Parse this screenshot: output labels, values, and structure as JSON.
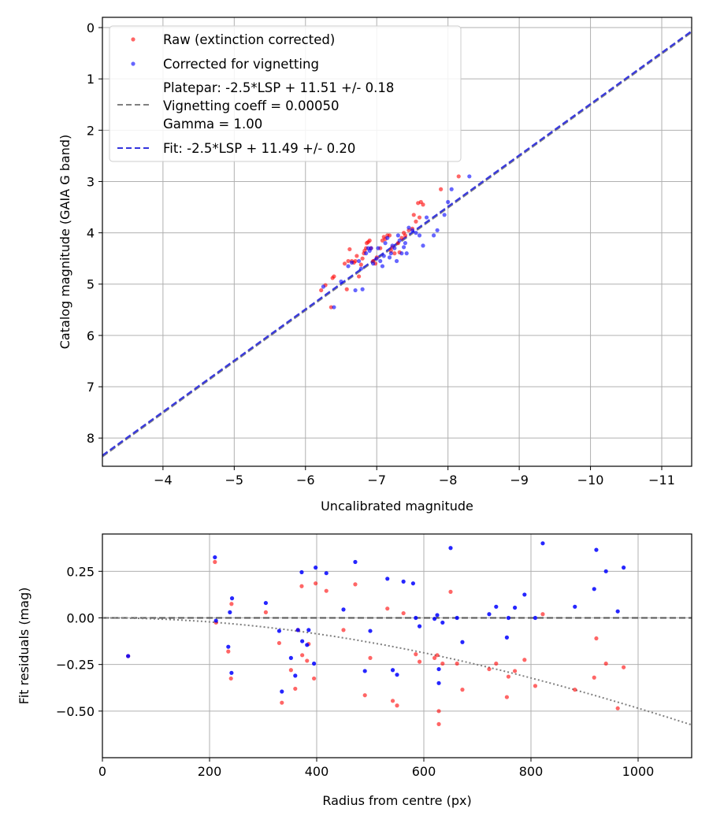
{
  "chart_data": [
    {
      "type": "scatter",
      "name": "calibration",
      "xlabel": "Uncalibrated magnitude",
      "ylabel": "Catalog magnitude (GAIA G band)",
      "xlim": [
        -3.15,
        -11.42
      ],
      "ylim": [
        8.55,
        -0.2
      ],
      "xticks": [
        -4,
        -5,
        -6,
        -7,
        -8,
        -9,
        -10,
        -11
      ],
      "xtick_labels": [
        "−4",
        "−5",
        "−6",
        "−7",
        "−8",
        "−9",
        "−10",
        "−11"
      ],
      "yticks": [
        0,
        1,
        2,
        3,
        4,
        5,
        6,
        7,
        8
      ],
      "ytick_labels": [
        "0",
        "1",
        "2",
        "3",
        "4",
        "5",
        "6",
        "7",
        "8"
      ],
      "grid": true,
      "legend_position": "top-left",
      "legend": [
        {
          "label": "Raw (extinction corrected)",
          "marker": "dot",
          "color": "#ff0000"
        },
        {
          "label": "Corrected for vignetting",
          "marker": "dot",
          "color": "#0000ff"
        },
        {
          "label": "Platepar: -2.5*LSP + 11.51 +/- 0.18",
          "label2": "Vignetting coeff = 0.00050",
          "label3": "Gamma = 1.00",
          "marker": "dashed",
          "color": "#808080"
        },
        {
          "label": "Fit: -2.5*LSP + 11.49 +/- 0.20",
          "marker": "dashed",
          "color": "#3333dd"
        }
      ],
      "lines": [
        {
          "name": "platepar",
          "slope": -2.5,
          "intercept": 11.51,
          "color": "#808080"
        },
        {
          "name": "fit",
          "slope": -2.5,
          "intercept": 11.49,
          "color": "#3333dd"
        }
      ],
      "series": [
        {
          "name": "Raw (extinction corrected)",
          "color": "#ff0000",
          "x": [
            -6.22,
            -6.28,
            -6.36,
            -6.38,
            -6.55,
            -6.58,
            -6.62,
            -6.65,
            -6.68,
            -6.7,
            -6.72,
            -6.75,
            -6.78,
            -6.8,
            -6.82,
            -6.83,
            -6.85,
            -6.86,
            -6.88,
            -6.9,
            -6.92,
            -6.95,
            -7.0,
            -7.05,
            -7.08,
            -7.1,
            -7.12,
            -7.15,
            -7.2,
            -7.22,
            -7.25,
            -7.3,
            -7.35,
            -7.38,
            -7.4,
            -7.45,
            -7.5,
            -7.52,
            -7.55,
            -7.6,
            -7.62,
            -7.65,
            -7.9,
            -8.15,
            -6.4,
            -6.6,
            -6.98,
            -7.18,
            -7.32,
            -7.58
          ],
          "y": [
            5.12,
            5.02,
            5.45,
            4.88,
            4.6,
            5.1,
            4.32,
            4.55,
            4.58,
            4.55,
            4.45,
            4.85,
            4.62,
            4.5,
            4.4,
            4.35,
            4.3,
            4.2,
            4.18,
            4.15,
            4.3,
            4.55,
            4.48,
            4.3,
            4.15,
            4.08,
            4.12,
            4.05,
            4.35,
            4.28,
            4.4,
            4.2,
            4.1,
            4.0,
            4.05,
            3.95,
            3.92,
            3.65,
            3.78,
            3.7,
            3.4,
            3.45,
            3.15,
            2.9,
            4.85,
            4.55,
            4.6,
            4.05,
            4.38,
            3.42
          ]
        },
        {
          "name": "Corrected for vignetting",
          "color": "#0000ff",
          "x": [
            -6.25,
            -6.4,
            -6.5,
            -6.6,
            -6.7,
            -6.75,
            -6.8,
            -6.85,
            -6.88,
            -6.92,
            -6.95,
            -7.0,
            -7.02,
            -7.05,
            -7.1,
            -7.12,
            -7.15,
            -7.2,
            -7.22,
            -7.25,
            -7.28,
            -7.3,
            -7.32,
            -7.35,
            -7.4,
            -7.42,
            -7.45,
            -7.5,
            -7.55,
            -7.6,
            -7.65,
            -7.7,
            -7.8,
            -7.85,
            -7.95,
            -8.0,
            -8.05,
            -8.3,
            -6.65,
            -6.9,
            -7.08,
            -7.38,
            -7.18,
            -6.78
          ],
          "y": [
            5.05,
            5.45,
            4.95,
            4.65,
            5.12,
            4.55,
            5.1,
            4.4,
            4.3,
            4.3,
            4.6,
            4.5,
            4.3,
            4.55,
            4.45,
            4.2,
            4.1,
            4.4,
            4.25,
            4.3,
            4.55,
            4.05,
            4.15,
            4.4,
            4.2,
            4.4,
            3.9,
            3.95,
            4.0,
            4.05,
            4.25,
            3.7,
            4.05,
            3.95,
            3.65,
            3.4,
            3.15,
            2.9,
            4.58,
            4.35,
            4.65,
            4.28,
            4.48,
            4.7
          ]
        }
      ]
    },
    {
      "type": "scatter",
      "name": "residuals",
      "xlabel": "Radius from centre (px)",
      "ylabel": "Fit residuals (mag)",
      "xlim": [
        0,
        1100
      ],
      "ylim": [
        -0.75,
        0.45
      ],
      "xticks": [
        0,
        200,
        400,
        600,
        800,
        1000
      ],
      "xtick_labels": [
        "0",
        "200",
        "400",
        "600",
        "800",
        "1000"
      ],
      "yticks": [
        0.25,
        0.0,
        -0.25,
        -0.5
      ],
      "ytick_labels": [
        "0.25",
        "0.00",
        "−0.25",
        "−0.50"
      ],
      "grid": true,
      "lines": [
        {
          "name": "zero-line",
          "style": "dashed",
          "color": "#555555",
          "y": 0
        },
        {
          "name": "vignetting-curve",
          "style": "dotted",
          "color": "#808080",
          "coeff": 0.0005
        }
      ],
      "series": [
        {
          "name": "Raw (extinction corrected)",
          "color": "#ff0000",
          "x": [
            48,
            210,
            212,
            235,
            240,
            241,
            305,
            330,
            335,
            352,
            360,
            365,
            372,
            373,
            382,
            385,
            395,
            398,
            418,
            450,
            472,
            490,
            500,
            532,
            542,
            550,
            562,
            585,
            592,
            620,
            625,
            628,
            628,
            635,
            650,
            662,
            672,
            722,
            735,
            755,
            758,
            770,
            788,
            808,
            822,
            882,
            918,
            922,
            940,
            962,
            973
          ],
          "y": [
            -0.205,
            0.3,
            -0.025,
            -0.18,
            -0.325,
            0.075,
            0.03,
            -0.135,
            -0.455,
            -0.28,
            -0.38,
            -0.065,
            0.17,
            -0.2,
            -0.23,
            -0.14,
            -0.325,
            0.185,
            0.145,
            -0.065,
            0.18,
            -0.415,
            -0.215,
            0.05,
            -0.445,
            -0.47,
            0.025,
            -0.195,
            -0.235,
            -0.215,
            -0.2,
            -0.5,
            -0.57,
            -0.245,
            0.14,
            -0.245,
            -0.385,
            -0.275,
            -0.245,
            -0.425,
            -0.315,
            -0.285,
            -0.225,
            -0.365,
            0.02,
            -0.385,
            -0.32,
            -0.11,
            -0.245,
            -0.485,
            -0.265
          ]
        },
        {
          "name": "Corrected for vignetting",
          "color": "#0000ff",
          "x": [
            48,
            210,
            212,
            235,
            238,
            241,
            242,
            305,
            330,
            335,
            352,
            360,
            365,
            372,
            373,
            382,
            385,
            395,
            398,
            418,
            450,
            472,
            490,
            500,
            532,
            542,
            550,
            562,
            580,
            585,
            592,
            620,
            625,
            628,
            628,
            635,
            650,
            662,
            672,
            722,
            735,
            755,
            758,
            770,
            788,
            808,
            822,
            882,
            918,
            922,
            940,
            962,
            973
          ],
          "y": [
            -0.205,
            0.325,
            -0.015,
            -0.155,
            0.03,
            -0.295,
            0.105,
            0.08,
            -0.07,
            -0.395,
            -0.215,
            -0.31,
            -0.065,
            0.245,
            -0.125,
            -0.145,
            -0.065,
            -0.245,
            0.27,
            0.24,
            0.045,
            0.3,
            -0.285,
            -0.07,
            0.21,
            -0.28,
            -0.305,
            0.195,
            0.185,
            0.0,
            -0.045,
            -0.005,
            0.015,
            -0.275,
            -0.35,
            -0.025,
            0.375,
            0.0,
            -0.13,
            0.02,
            0.06,
            -0.105,
            0.0,
            0.055,
            0.125,
            0.0,
            0.4,
            0.06,
            0.155,
            0.365,
            0.25,
            0.035,
            0.27
          ]
        }
      ]
    }
  ]
}
